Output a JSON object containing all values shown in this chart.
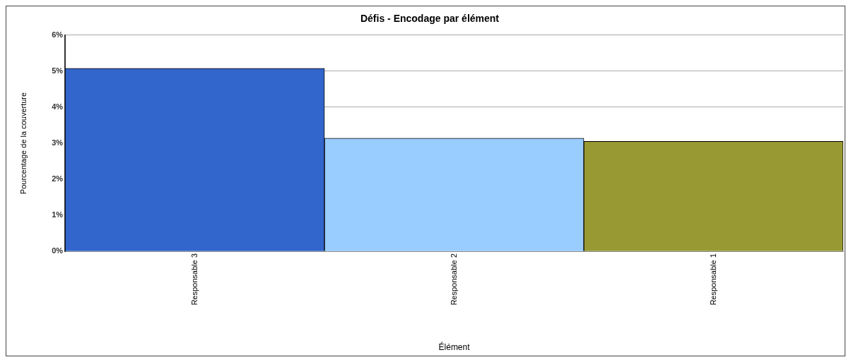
{
  "chart_data": {
    "type": "bar",
    "title": "Défis - Encodage par élément",
    "xlabel": "Élément",
    "ylabel": "Pourcentage de la couverture",
    "categories": [
      "Responsable 3",
      "Responsable 2",
      "Responsable 1"
    ],
    "values": [
      5.08,
      3.14,
      3.05
    ],
    "colors": [
      "#3366cc",
      "#99ccff",
      "#999933"
    ],
    "ylim": [
      0,
      6
    ],
    "yticks": [
      {
        "value": 0,
        "label": "0%"
      },
      {
        "value": 1,
        "label": "1%"
      },
      {
        "value": 2,
        "label": "2%"
      },
      {
        "value": 3,
        "label": "3%"
      },
      {
        "value": 4,
        "label": "4%"
      },
      {
        "value": 5,
        "label": "5%"
      },
      {
        "value": 6,
        "label": "6%"
      }
    ],
    "grid": "y",
    "legend": false
  }
}
